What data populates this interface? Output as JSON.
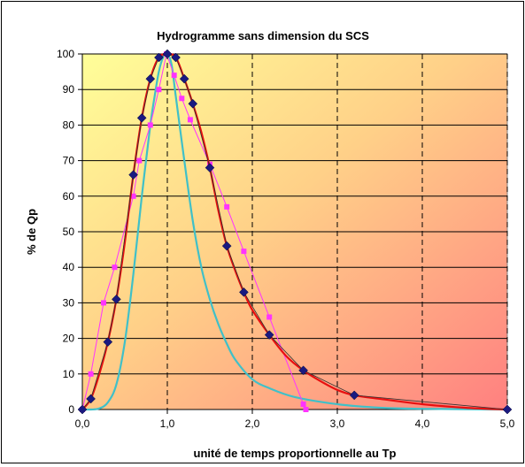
{
  "chart_data": {
    "type": "line",
    "title": "Hydrogramme sans dimension du SCS",
    "xlabel": "unité de temps proportionnelle au Tp",
    "ylabel": "% de Qp",
    "xlim": [
      0,
      5
    ],
    "ylim": [
      0,
      100
    ],
    "x_ticks": [
      "0,0",
      "1,0",
      "2,0",
      "3,0",
      "4,0",
      "5,0"
    ],
    "y_ticks": [
      "0",
      "10",
      "20",
      "30",
      "40",
      "50",
      "60",
      "70",
      "80",
      "90",
      "100"
    ],
    "grid": {
      "horizontal": "solid",
      "vertical": "dashed"
    },
    "background": "gradient yellow (top-left) to red (bottom-right)",
    "legend": "none",
    "series": [
      {
        "color": "#e81010",
        "style": "smooth line",
        "x": [
          0,
          0.1,
          0.2,
          0.3,
          0.4,
          0.5,
          0.6,
          0.7,
          0.8,
          0.9,
          1.0,
          1.1,
          1.2,
          1.3,
          1.4,
          1.5,
          1.6,
          1.7,
          1.8,
          1.9,
          2.0,
          2.2,
          2.4,
          2.6,
          2.8,
          3.0,
          3.2,
          3.5,
          4.0,
          4.5,
          5.0
        ],
        "values": [
          0,
          3,
          10,
          19,
          31,
          47,
          66,
          82,
          93,
          99,
          100,
          99,
          93,
          86,
          78,
          68,
          56,
          46,
          39,
          33,
          28,
          21,
          15,
          11,
          8,
          5.5,
          4,
          3,
          1.5,
          0.5,
          0
        ]
      },
      {
        "color": "#1a1a80",
        "style": "diamond markers with thin line",
        "x": [
          0,
          0.1,
          0.3,
          0.4,
          0.6,
          0.7,
          0.8,
          0.9,
          1.0,
          1.1,
          1.2,
          1.3,
          1.5,
          1.7,
          1.9,
          2.2,
          2.6,
          3.2,
          5.0
        ],
        "values": [
          0,
          3,
          19,
          31,
          66,
          82,
          93,
          99,
          100,
          99,
          93,
          86,
          68,
          46,
          33,
          21,
          11,
          4,
          0
        ]
      },
      {
        "color": "#ff33ff",
        "style": "square markers with line",
        "x": [
          0,
          0.1,
          0.25,
          0.38,
          0.6,
          0.67,
          0.8,
          0.9,
          0.99,
          1.08,
          1.17,
          1.27,
          1.5,
          1.7,
          1.9,
          2.2,
          2.6,
          2.63
        ],
        "values": [
          0,
          10,
          30,
          40,
          60,
          70,
          80,
          90,
          100,
          94,
          87.5,
          81.5,
          69,
          57,
          44.5,
          26,
          1.5,
          0
        ]
      },
      {
        "color": "#40c0c8",
        "style": "smooth line",
        "x": [
          0,
          0.1,
          0.2,
          0.3,
          0.4,
          0.5,
          0.6,
          0.7,
          0.8,
          0.85,
          0.9,
          0.95,
          1.0,
          1.05,
          1.1,
          1.2,
          1.3,
          1.4,
          1.5,
          1.6,
          1.7,
          1.8,
          2.0,
          2.2,
          2.5,
          3.0,
          3.5,
          4.0,
          5.0
        ],
        "values": [
          0,
          0,
          0.3,
          2,
          7,
          19,
          38,
          60,
          80,
          88,
          95,
          99,
          100,
          97,
          88,
          70,
          53,
          40,
          31,
          24,
          18.5,
          14,
          8.5,
          6,
          3.5,
          1.5,
          0.5,
          0.2,
          0
        ]
      }
    ]
  }
}
